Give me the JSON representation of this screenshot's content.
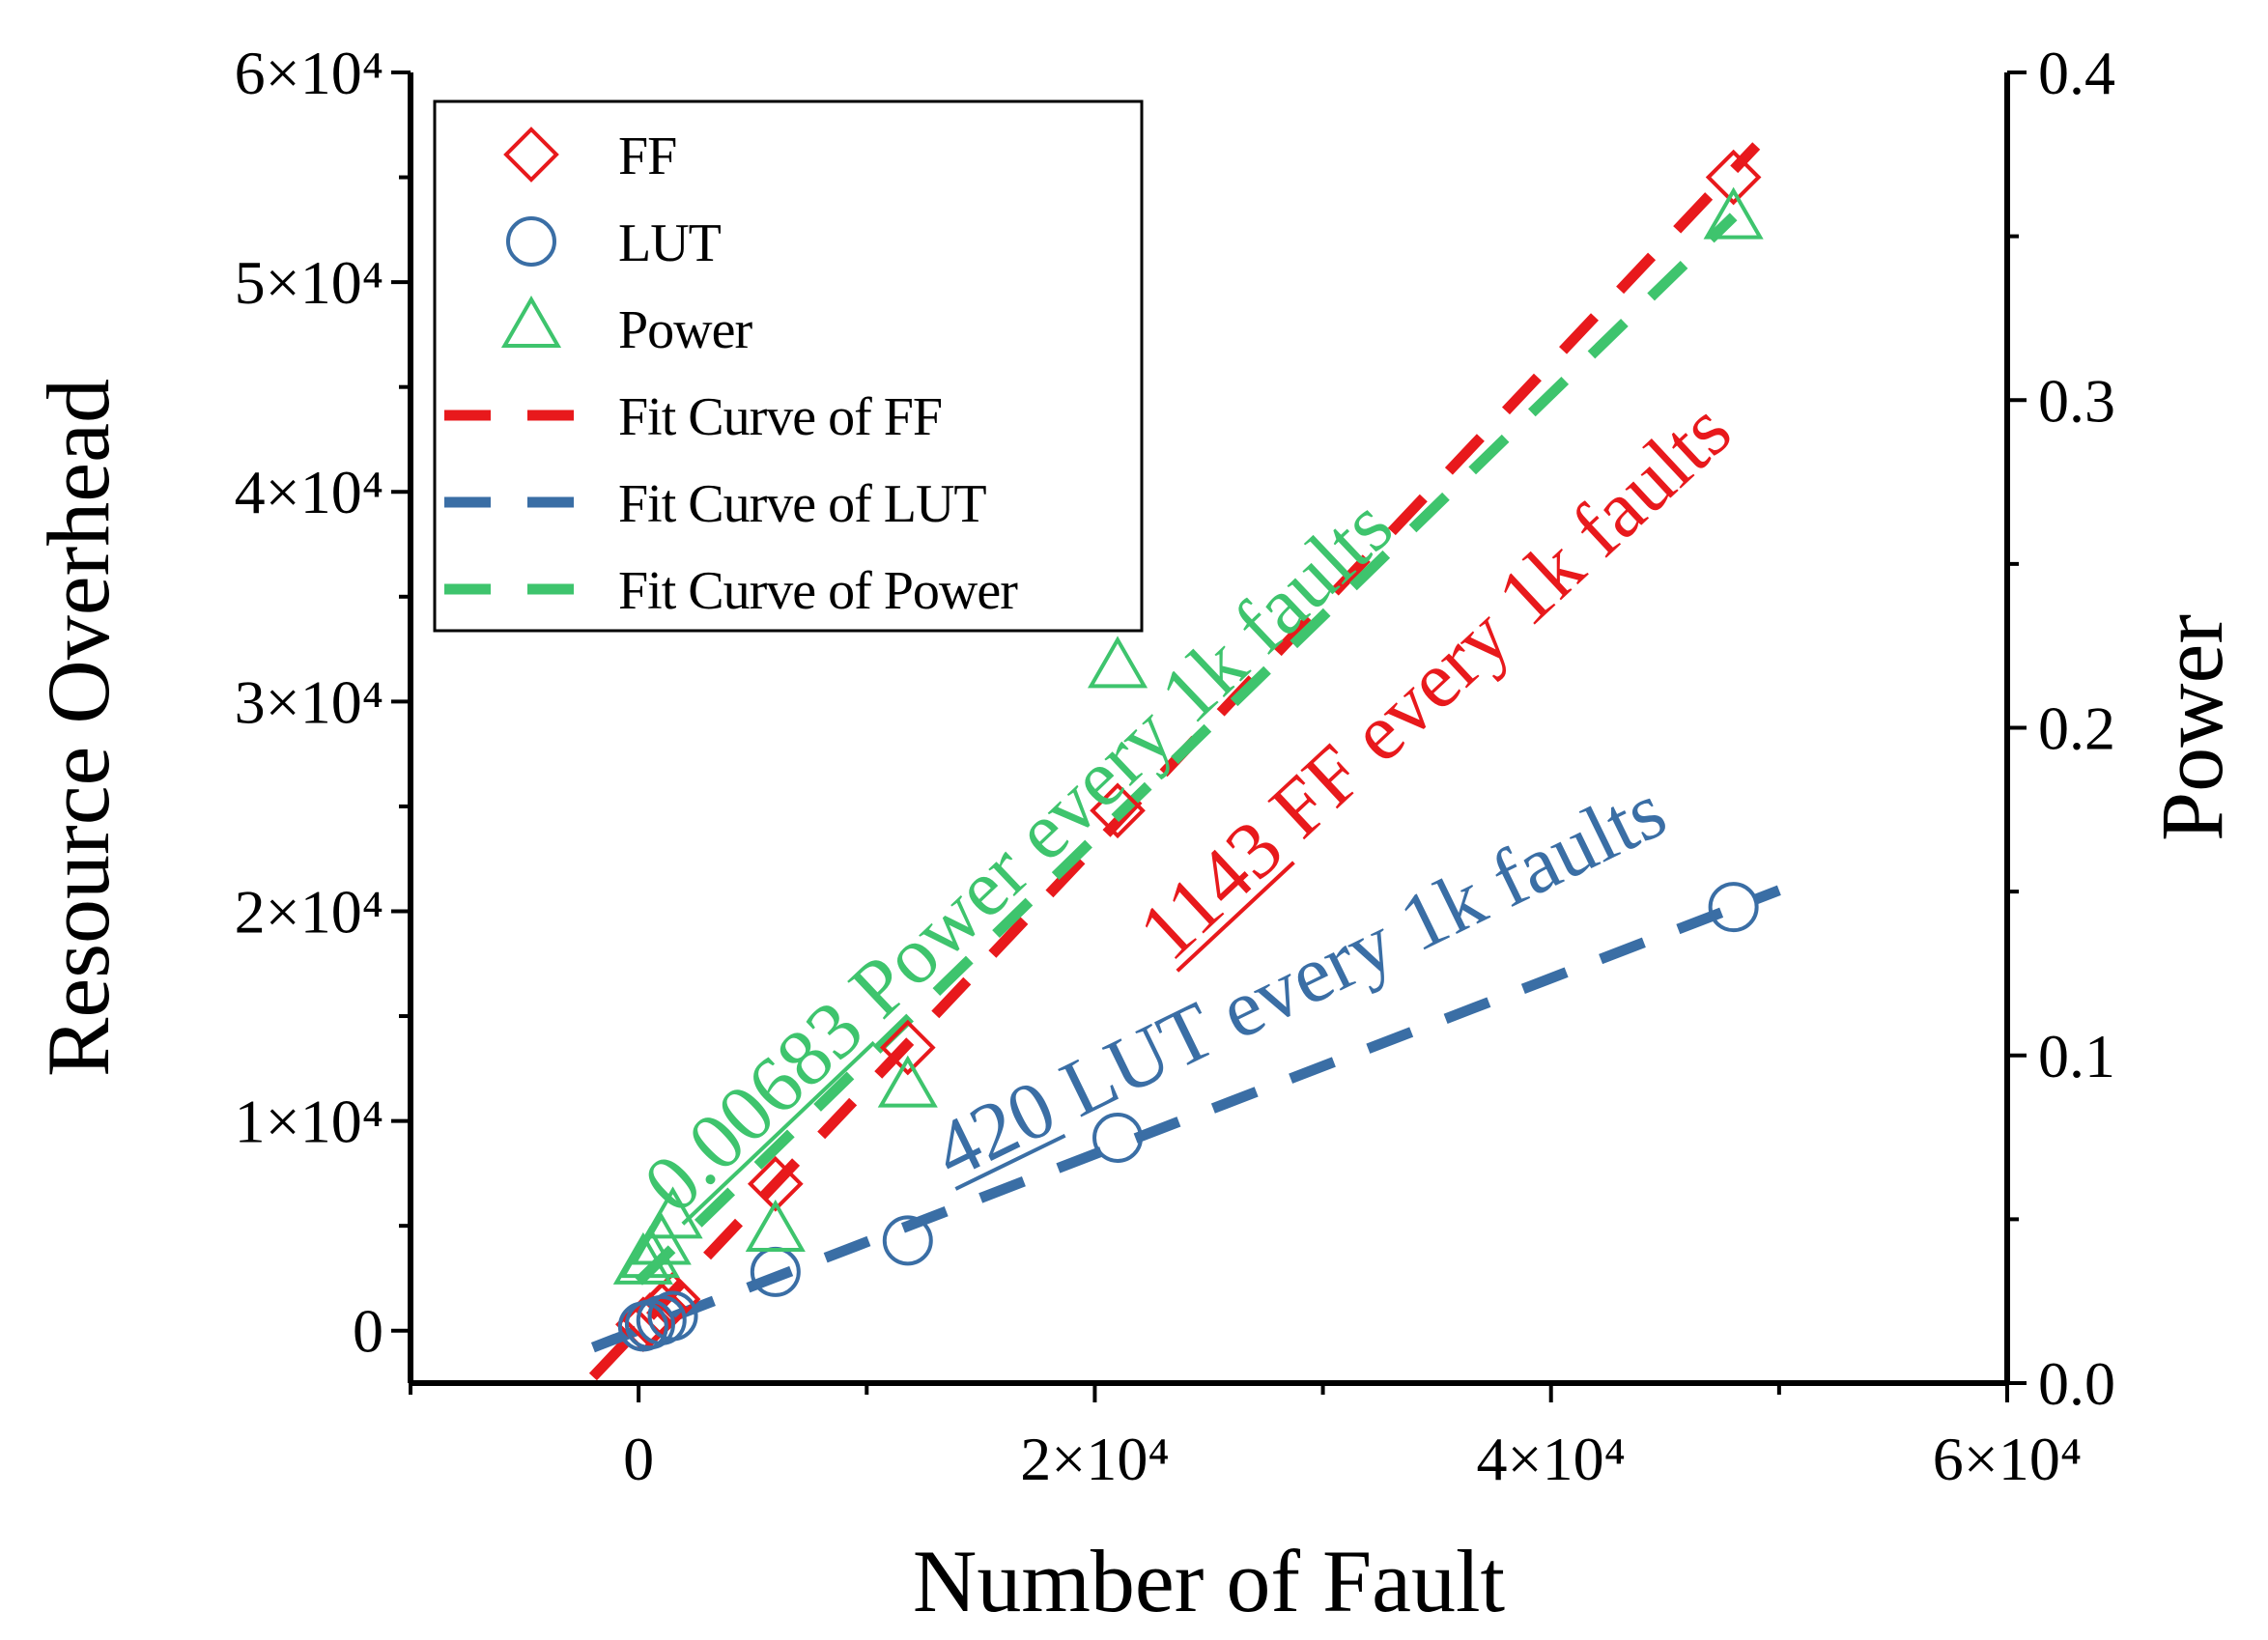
{
  "chart_data": {
    "type": "scatter",
    "x_axis": {
      "label": "Number of Fault",
      "range": [
        -10000,
        60000
      ],
      "ticks": [
        0,
        20000,
        40000,
        60000
      ],
      "tick_labels": [
        "0",
        "2×10⁴",
        "4×10⁴",
        "6×10⁴"
      ]
    },
    "y_axis_left": {
      "label": "Resource Overhead",
      "range": [
        -2500,
        60000
      ],
      "ticks": [
        0,
        10000,
        20000,
        30000,
        40000,
        50000,
        60000
      ],
      "tick_labels": [
        "0",
        "1×10⁴",
        "2×10⁴",
        "3×10⁴",
        "4×10⁴",
        "5×10⁴",
        "6×10⁴"
      ]
    },
    "y_axis_right": {
      "label": "Power",
      "range": [
        0.0,
        0.4
      ],
      "ticks": [
        0.0,
        0.1,
        0.2,
        0.3,
        0.4
      ],
      "tick_labels": [
        "0.0",
        "0.1",
        "0.2",
        "0.3",
        "0.4"
      ]
    },
    "series": [
      {
        "name": "FF",
        "axis": "left",
        "marker": "diamond",
        "color": "#e8191c",
        "x": [
          200,
          500,
          1000,
          1500,
          6000,
          11800,
          21000,
          48000
        ],
        "y": [
          300,
          500,
          1000,
          1500,
          7000,
          13500,
          24800,
          55000
        ]
      },
      {
        "name": "LUT",
        "axis": "left",
        "marker": "circle",
        "color": "#3a6ea5",
        "x": [
          200,
          500,
          1000,
          1500,
          6000,
          11800,
          21000,
          48000
        ],
        "y": [
          200,
          300,
          500,
          700,
          2800,
          4300,
          9200,
          20200
        ]
      },
      {
        "name": "Power",
        "axis": "right",
        "marker": "triangle",
        "color": "#3ec46d",
        "x": [
          200,
          500,
          1000,
          1500,
          6000,
          11800,
          21000,
          48000
        ],
        "y": [
          0.036,
          0.038,
          0.042,
          0.05,
          0.046,
          0.09,
          0.218,
          0.355
        ]
      }
    ],
    "fit_lines": [
      {
        "name": "Fit Curve of FF",
        "axis": "left",
        "color": "#e8191c",
        "x": [
          -2000,
          49000
        ],
        "y": [
          -2200,
          56500
        ]
      },
      {
        "name": "Fit Curve of LUT",
        "axis": "left",
        "color": "#3a6ea5",
        "x": [
          -2000,
          50000
        ],
        "y": [
          -800,
          21000
        ]
      },
      {
        "name": "Fit Curve of Power",
        "axis": "right",
        "color": "#3ec46d",
        "x": [
          0,
          48000
        ],
        "y": [
          0.031,
          0.356
        ]
      }
    ],
    "annotations": [
      {
        "id": "power-note",
        "text": "0.00683 Power every 1k faults",
        "underline": "0.00683",
        "color": "#3ec46d"
      },
      {
        "id": "ff-note",
        "text": "1143 FF every 1k faults",
        "underline": "1143",
        "color": "#e8191c"
      },
      {
        "id": "lut-note",
        "text": "420 LUT every 1k faults",
        "underline": "420",
        "color": "#3a6ea5"
      }
    ],
    "legend": {
      "position": "top-left",
      "entries": [
        "FF",
        "LUT",
        "Power",
        "Fit Curve of FF",
        "Fit Curve of LUT",
        "Fit Curve of Power"
      ]
    },
    "grid": false
  }
}
